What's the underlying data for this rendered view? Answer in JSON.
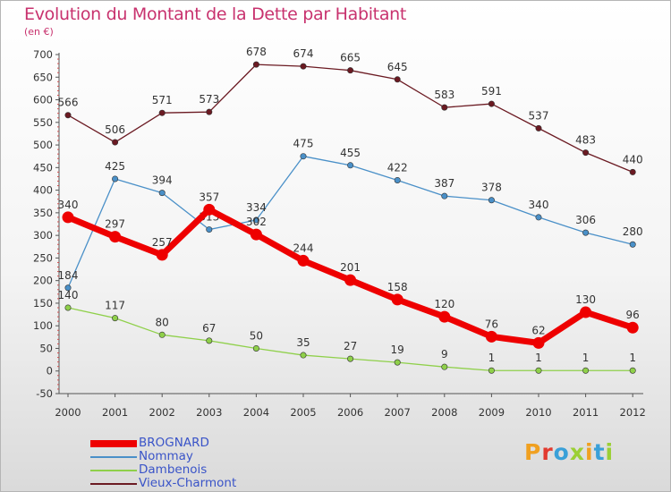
{
  "title": "Evolution du Montant de la Dette par Habitant",
  "subtitle": "(en €)",
  "logo": {
    "text": "Proxiti",
    "letter_colors": [
      "#f0a020",
      "#e23a2f",
      "#3aa0d8",
      "#9bcf35",
      "#f0a020",
      "#3aa0d8",
      "#9bcf35"
    ]
  },
  "chart_data": {
    "type": "line",
    "title": "Evolution du Montant de la Dette par Habitant",
    "ylabel": "(en €)",
    "xlabel": "",
    "x": [
      2000,
      2001,
      2002,
      2003,
      2004,
      2005,
      2006,
      2007,
      2008,
      2009,
      2010,
      2011,
      2012
    ],
    "ylim": [
      -50,
      700
    ],
    "yticks": [
      -50,
      0,
      50,
      100,
      150,
      200,
      250,
      300,
      350,
      400,
      450,
      500,
      550,
      600,
      650,
      700
    ],
    "grid": false,
    "legend_position": "bottom-left",
    "series": [
      {
        "name": "Vieux-Charmont",
        "color": "#6b1a22",
        "width": "thin",
        "values": [
          566,
          506,
          571,
          573,
          678,
          674,
          665,
          645,
          583,
          591,
          537,
          483,
          440
        ]
      },
      {
        "name": "Nommay",
        "color": "#4a90c8",
        "width": "thin",
        "values": [
          184,
          425,
          394,
          313,
          334,
          475,
          455,
          422,
          387,
          378,
          340,
          306,
          280
        ]
      },
      {
        "name": "Dambenois",
        "color": "#8fd04a",
        "width": "thin",
        "values": [
          140,
          117,
          80,
          67,
          50,
          35,
          27,
          19,
          9,
          1,
          1,
          1,
          1
        ]
      },
      {
        "name": "BROGNARD",
        "color": "#ee0000",
        "width": "thick",
        "values": [
          340,
          297,
          257,
          357,
          302,
          244,
          201,
          158,
          120,
          76,
          62,
          130,
          96
        ]
      }
    ],
    "legend_order": [
      "BROGNARD",
      "Nommay",
      "Dambenois",
      "Vieux-Charmont"
    ]
  }
}
